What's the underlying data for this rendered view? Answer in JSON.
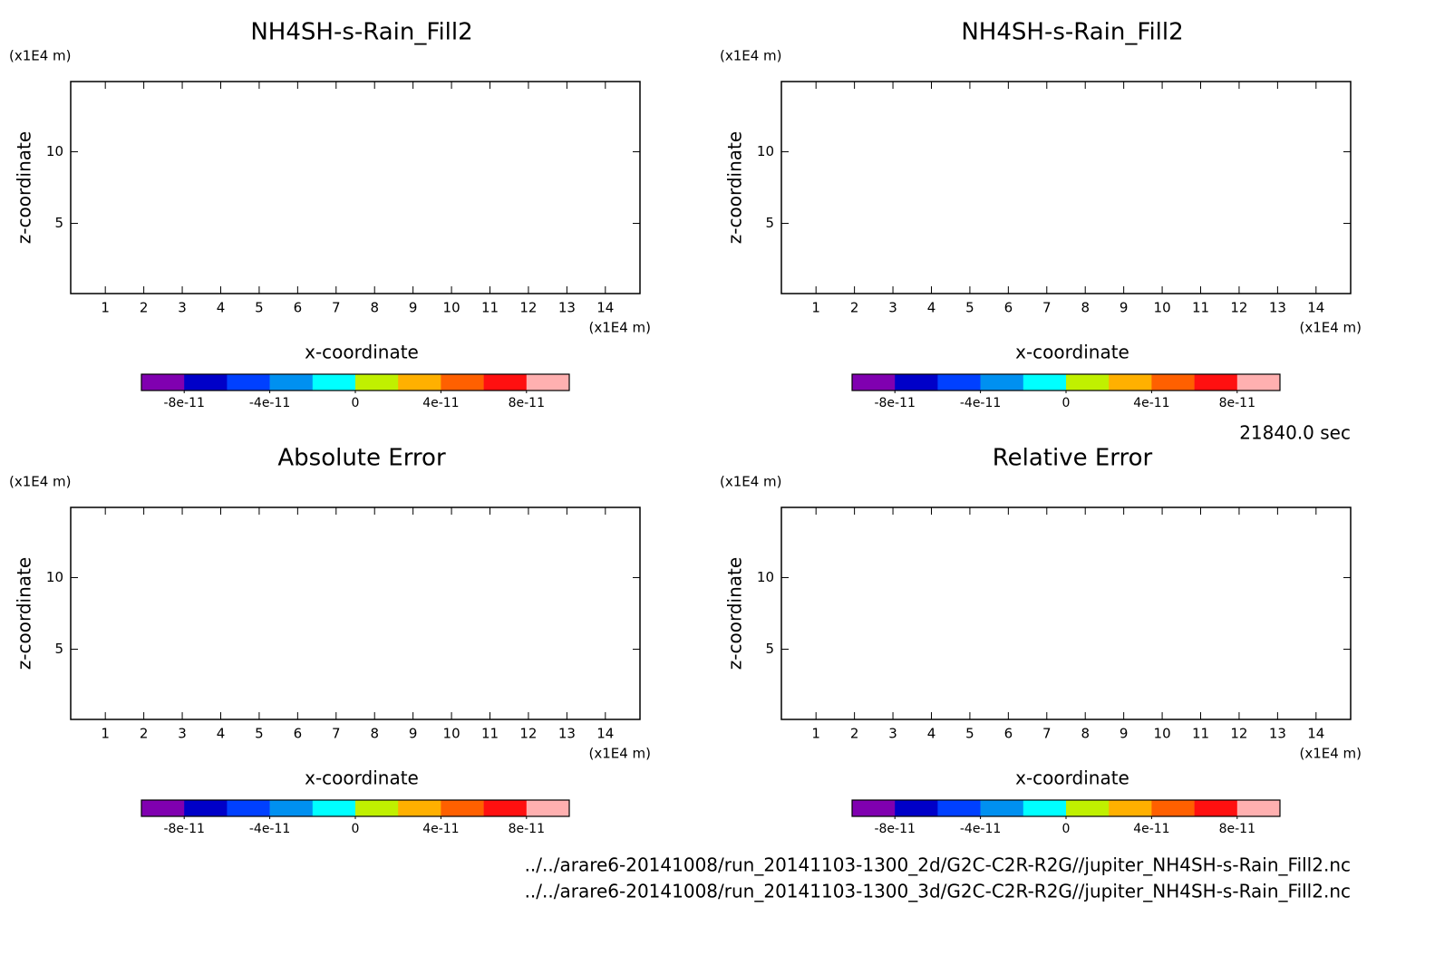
{
  "chart_data": [
    {
      "type": "contour",
      "title": "NH4SH-s-Rain_Fill2",
      "xlabel": "x-coordinate",
      "ylabel": "z-coordinate",
      "x_unit": "(x1E4 m)",
      "y_unit": "(x1E4 m)",
      "xlim": [
        0.1,
        14.9
      ],
      "ylim": [
        0.1,
        14.9
      ],
      "xticks": [
        1,
        2,
        3,
        4,
        5,
        6,
        7,
        8,
        9,
        10,
        11,
        12,
        13,
        14
      ],
      "yticks": [
        5,
        10
      ],
      "colorbar": {
        "colors": [
          "#8000b0",
          "#0000c8",
          "#0040ff",
          "#0090f0",
          "#00ffff",
          "#c0f000",
          "#ffb000",
          "#ff6000",
          "#ff1010",
          "#ffb0b0"
        ],
        "clim": [
          -1e-10,
          1e-10
        ],
        "ticks": [
          -8e-11,
          -4e-11,
          0,
          4e-11,
          8e-11
        ]
      }
    },
    {
      "type": "contour",
      "title": "NH4SH-s-Rain_Fill2",
      "xlabel": "x-coordinate",
      "ylabel": "z-coordinate",
      "x_unit": "(x1E4 m)",
      "y_unit": "(x1E4 m)",
      "xlim": [
        0.1,
        14.9
      ],
      "ylim": [
        0.1,
        14.9
      ],
      "xticks": [
        1,
        2,
        3,
        4,
        5,
        6,
        7,
        8,
        9,
        10,
        11,
        12,
        13,
        14
      ],
      "yticks": [
        5,
        10
      ],
      "colorbar": {
        "colors": [
          "#8000b0",
          "#0000c8",
          "#0040ff",
          "#0090f0",
          "#00ffff",
          "#c0f000",
          "#ffb000",
          "#ff6000",
          "#ff1010",
          "#ffb0b0"
        ],
        "clim": [
          -1e-10,
          1e-10
        ],
        "ticks": [
          -8e-11,
          -4e-11,
          0,
          4e-11,
          8e-11
        ]
      }
    },
    {
      "type": "contour",
      "title": "Absolute Error",
      "xlabel": "x-coordinate",
      "ylabel": "z-coordinate",
      "x_unit": "(x1E4 m)",
      "y_unit": "(x1E4 m)",
      "xlim": [
        0.1,
        14.9
      ],
      "ylim": [
        0.1,
        14.9
      ],
      "xticks": [
        1,
        2,
        3,
        4,
        5,
        6,
        7,
        8,
        9,
        10,
        11,
        12,
        13,
        14
      ],
      "yticks": [
        5,
        10
      ],
      "colorbar": {
        "colors": [
          "#8000b0",
          "#0000c8",
          "#0040ff",
          "#0090f0",
          "#00ffff",
          "#c0f000",
          "#ffb000",
          "#ff6000",
          "#ff1010",
          "#ffb0b0"
        ],
        "clim": [
          -1e-10,
          1e-10
        ],
        "ticks": [
          -8e-11,
          -4e-11,
          0,
          4e-11,
          8e-11
        ]
      }
    },
    {
      "type": "contour",
      "title": "Relative Error",
      "xlabel": "x-coordinate",
      "ylabel": "z-coordinate",
      "x_unit": "(x1E4 m)",
      "y_unit": "(x1E4 m)",
      "xlim": [
        0.1,
        14.9
      ],
      "ylim": [
        0.1,
        14.9
      ],
      "xticks": [
        1,
        2,
        3,
        4,
        5,
        6,
        7,
        8,
        9,
        10,
        11,
        12,
        13,
        14
      ],
      "yticks": [
        5,
        10
      ],
      "colorbar": {
        "colors": [
          "#8000b0",
          "#0000c8",
          "#0040ff",
          "#0090f0",
          "#00ffff",
          "#c0f000",
          "#ffb000",
          "#ff6000",
          "#ff1010",
          "#ffb0b0"
        ],
        "clim": [
          -1e-10,
          1e-10
        ],
        "ticks": [
          -8e-11,
          -4e-11,
          0,
          4e-11,
          8e-11
        ]
      }
    }
  ],
  "time": "21840.0 sec",
  "files": [
    "../../arare6-20141008/run_20141103-1300_2d/G2C-C2R-R2G//jupiter_NH4SH-s-Rain_Fill2.nc",
    "../../arare6-20141008/run_20141103-1300_3d/G2C-C2R-R2G//jupiter_NH4SH-s-Rain_Fill2.nc"
  ]
}
